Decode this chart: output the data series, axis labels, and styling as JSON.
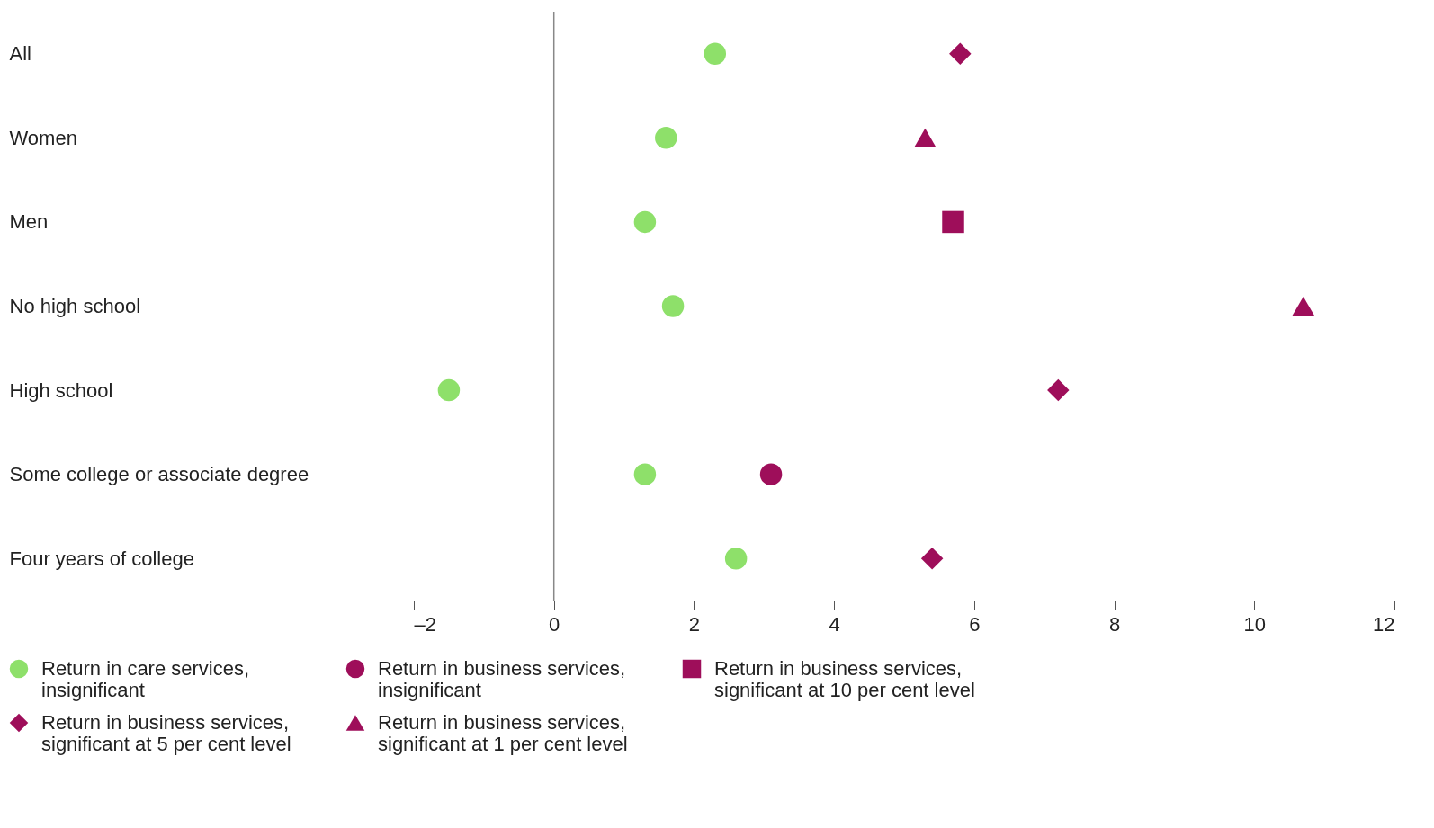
{
  "chart_data": {
    "type": "scatter",
    "orientation": "horizontal",
    "categories": [
      "All",
      "Women",
      "Men",
      "No high school",
      "High school",
      "Some college or associate degree",
      "Four years of college"
    ],
    "series": [
      {
        "name": "Return in care services, insignificant",
        "color": "#8ee06a",
        "marker": "circle",
        "values": [
          2.3,
          1.6,
          1.3,
          1.7,
          -1.5,
          1.3,
          2.6
        ]
      },
      {
        "name": "Return in business services, insignificant",
        "color": "#9e0e5a",
        "marker": "circle",
        "values": [
          null,
          null,
          null,
          null,
          null,
          3.1,
          null
        ]
      },
      {
        "name": "Return in business services, significant at 10 per cent level",
        "color": "#9e0e5a",
        "marker": "square",
        "values": [
          null,
          null,
          5.7,
          null,
          null,
          null,
          null
        ]
      },
      {
        "name": "Return in business services, significant at 5 per cent level",
        "color": "#9e0e5a",
        "marker": "diamond",
        "values": [
          5.8,
          null,
          null,
          null,
          7.2,
          null,
          5.4
        ]
      },
      {
        "name": "Return in business services, significant at 1 per cent level",
        "color": "#9e0e5a",
        "marker": "triangle",
        "values": [
          null,
          5.3,
          null,
          10.7,
          null,
          null,
          null
        ]
      }
    ],
    "xlim": [
      -2,
      12
    ],
    "xticks": [
      {
        "value": -2,
        "label": "–2"
      },
      0,
      2,
      4,
      6,
      8,
      10,
      12
    ],
    "ref_lines": [
      {
        "axis": "x",
        "value": 0
      }
    ],
    "grid": false,
    "legend": "bottom"
  }
}
